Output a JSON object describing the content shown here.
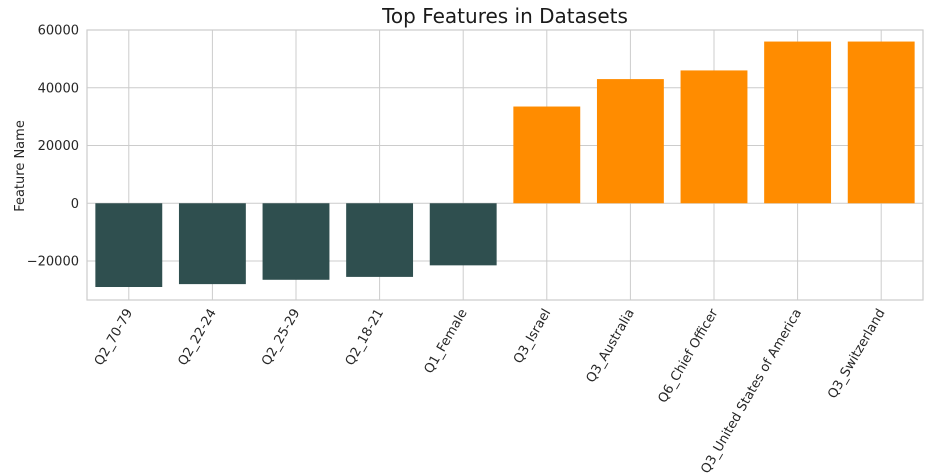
{
  "chart_data": {
    "type": "bar",
    "title": "Top Features in Datasets",
    "xlabel": "",
    "ylabel": "Feature Name",
    "categories": [
      "Q2_70-79",
      "Q2_22-24",
      "Q2_25-29",
      "Q2_18-21",
      "Q1_Female",
      "Q3_Israel",
      "Q3_Australia",
      "Q6_Chief Officer",
      "Q3_United States of America",
      "Q3_Switzerland"
    ],
    "values": [
      -29000,
      -28000,
      -26500,
      -25500,
      -21500,
      33500,
      43000,
      46000,
      56000,
      56000
    ],
    "ylim": [
      -33500,
      60000
    ],
    "yticks": [
      -20000,
      0,
      20000,
      40000,
      60000
    ],
    "ytick_labels": [
      "−20000",
      "0",
      "20000",
      "40000",
      "60000"
    ],
    "grid": true,
    "colors": {
      "negative": "#2f4f4f",
      "positive": "#ff8c00"
    }
  }
}
